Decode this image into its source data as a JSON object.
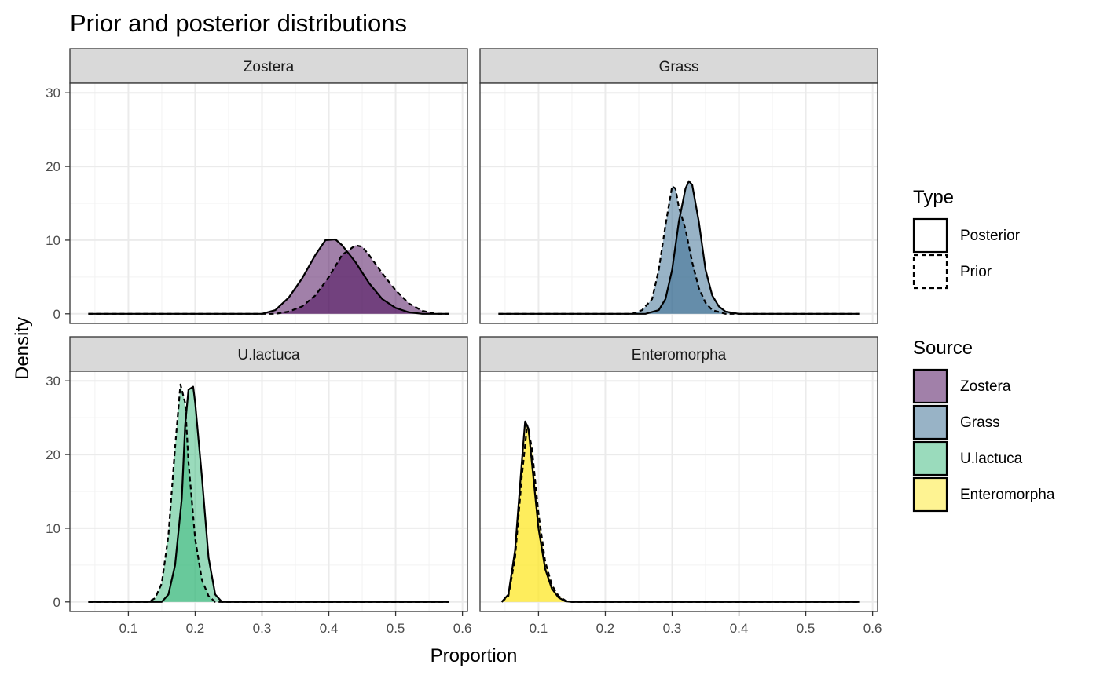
{
  "chart_data": {
    "type": "area",
    "title": "Prior and posterior distributions",
    "xlabel": "Proportion",
    "ylabel": "Density",
    "xlim": [
      0.0125,
      0.6075
    ],
    "ylim": [
      -1.3,
      31.3
    ],
    "x_ticks": [
      0.1,
      0.2,
      0.3,
      0.4,
      0.5,
      0.6
    ],
    "y_ticks": [
      0,
      10,
      20,
      30
    ],
    "x_tick_labels": [
      "0.1",
      "0.2",
      "0.3",
      "0.4",
      "0.5",
      "0.6"
    ],
    "y_tick_labels": [
      "0",
      "10",
      "20",
      "30"
    ],
    "grid": true,
    "facets": [
      {
        "label": "Zostera",
        "color": "#440154",
        "series": [
          {
            "type": "Posterior",
            "points": [
              [
                0.04,
                0
              ],
              [
                0.3,
                0
              ],
              [
                0.32,
                0.5
              ],
              [
                0.34,
                2.2
              ],
              [
                0.36,
                4.8
              ],
              [
                0.38,
                8.0
              ],
              [
                0.395,
                10.0
              ],
              [
                0.41,
                10.1
              ],
              [
                0.42,
                9.3
              ],
              [
                0.44,
                7.0
              ],
              [
                0.46,
                4.2
              ],
              [
                0.48,
                2.0
              ],
              [
                0.5,
                0.8
              ],
              [
                0.52,
                0.2
              ],
              [
                0.54,
                0
              ],
              [
                0.58,
                0
              ]
            ]
          },
          {
            "type": "Prior",
            "points": [
              [
                0.04,
                0
              ],
              [
                0.32,
                0
              ],
              [
                0.34,
                0.3
              ],
              [
                0.36,
                1.0
              ],
              [
                0.38,
                2.5
              ],
              [
                0.4,
                5.0
              ],
              [
                0.42,
                8.0
              ],
              [
                0.44,
                9.3
              ],
              [
                0.45,
                9.1
              ],
              [
                0.46,
                8.0
              ],
              [
                0.48,
                5.5
              ],
              [
                0.5,
                3.2
              ],
              [
                0.52,
                1.4
              ],
              [
                0.54,
                0.4
              ],
              [
                0.56,
                0
              ],
              [
                0.58,
                0
              ]
            ]
          }
        ]
      },
      {
        "label": "Grass",
        "color": "#31688e",
        "series": [
          {
            "type": "Posterior",
            "points": [
              [
                0.04,
                0
              ],
              [
                0.26,
                0
              ],
              [
                0.28,
                0.5
              ],
              [
                0.29,
                2.0
              ],
              [
                0.3,
                6.0
              ],
              [
                0.31,
                12.5
              ],
              [
                0.32,
                17.0
              ],
              [
                0.325,
                18.0
              ],
              [
                0.33,
                17.5
              ],
              [
                0.34,
                12.5
              ],
              [
                0.35,
                6.0
              ],
              [
                0.36,
                2.5
              ],
              [
                0.37,
                1.0
              ],
              [
                0.38,
                0.3
              ],
              [
                0.4,
                0
              ],
              [
                0.58,
                0
              ]
            ]
          },
          {
            "type": "Prior",
            "points": [
              [
                0.04,
                0
              ],
              [
                0.24,
                0
              ],
              [
                0.255,
                0.5
              ],
              [
                0.27,
                2.0
              ],
              [
                0.28,
                6.0
              ],
              [
                0.29,
                12.0
              ],
              [
                0.3,
                17.3
              ],
              [
                0.305,
                17.0
              ],
              [
                0.31,
                14.5
              ],
              [
                0.32,
                11.5
              ],
              [
                0.33,
                7.0
              ],
              [
                0.34,
                3.5
              ],
              [
                0.35,
                1.5
              ],
              [
                0.36,
                0.5
              ],
              [
                0.38,
                0
              ],
              [
                0.58,
                0
              ]
            ]
          }
        ]
      },
      {
        "label": "U.lactuca",
        "color": "#35b779",
        "series": [
          {
            "type": "Posterior",
            "points": [
              [
                0.04,
                0
              ],
              [
                0.15,
                0
              ],
              [
                0.16,
                1.0
              ],
              [
                0.17,
                5.0
              ],
              [
                0.18,
                14.0
              ],
              [
                0.185,
                24.0
              ],
              [
                0.19,
                28.8
              ],
              [
                0.197,
                29.2
              ],
              [
                0.2,
                27.0
              ],
              [
                0.21,
                17.0
              ],
              [
                0.22,
                6.0
              ],
              [
                0.23,
                1.0
              ],
              [
                0.24,
                0
              ],
              [
                0.58,
                0
              ]
            ]
          },
          {
            "type": "Prior",
            "points": [
              [
                0.04,
                0
              ],
              [
                0.13,
                0
              ],
              [
                0.14,
                0.5
              ],
              [
                0.15,
                2.5
              ],
              [
                0.16,
                9.0
              ],
              [
                0.17,
                21.0
              ],
              [
                0.178,
                29.5
              ],
              [
                0.185,
                27.0
              ],
              [
                0.19,
                19.0
              ],
              [
                0.2,
                8.5
              ],
              [
                0.21,
                3.0
              ],
              [
                0.22,
                0.8
              ],
              [
                0.23,
                0
              ],
              [
                0.58,
                0
              ]
            ]
          }
        ]
      },
      {
        "label": "Enteromorpha",
        "color": "#fde725",
        "series": [
          {
            "type": "Posterior",
            "points": [
              [
                0.045,
                0
              ],
              [
                0.055,
                1.0
              ],
              [
                0.065,
                7.0
              ],
              [
                0.075,
                19.0
              ],
              [
                0.08,
                24.5
              ],
              [
                0.085,
                23.5
              ],
              [
                0.09,
                19.0
              ],
              [
                0.1,
                10.0
              ],
              [
                0.11,
                4.5
              ],
              [
                0.12,
                1.8
              ],
              [
                0.13,
                0.6
              ],
              [
                0.14,
                0.1
              ],
              [
                0.15,
                0
              ],
              [
                0.58,
                0
              ]
            ]
          },
          {
            "type": "Prior",
            "points": [
              [
                0.045,
                0
              ],
              [
                0.055,
                0.8
              ],
              [
                0.065,
                6.0
              ],
              [
                0.075,
                17.0
              ],
              [
                0.083,
                24.0
              ],
              [
                0.09,
                21.0
              ],
              [
                0.1,
                12.0
              ],
              [
                0.11,
                5.5
              ],
              [
                0.12,
                2.3
              ],
              [
                0.13,
                0.8
              ],
              [
                0.14,
                0.2
              ],
              [
                0.15,
                0
              ],
              [
                0.58,
                0
              ]
            ]
          }
        ]
      }
    ],
    "legend": {
      "placement": "right",
      "type_title": "Type",
      "type_entries": [
        {
          "label": "Posterior",
          "linetype": "solid"
        },
        {
          "label": "Prior",
          "linetype": "dashed"
        }
      ],
      "source_title": "Source",
      "source_entries": [
        {
          "label": "Zostera",
          "color": "#440154"
        },
        {
          "label": "Grass",
          "color": "#31688e"
        },
        {
          "label": "U.lactuca",
          "color": "#35b779"
        },
        {
          "label": "Enteromorpha",
          "color": "#fde725"
        }
      ]
    }
  }
}
